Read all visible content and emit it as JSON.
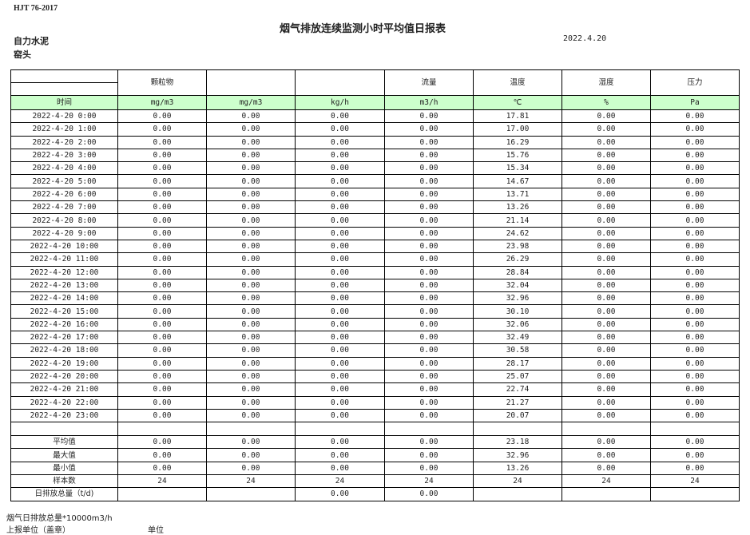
{
  "header": {
    "standard": "HJT  76-2017",
    "title": "烟气排放连续监测小时平均值日报表",
    "organization": "自力水泥",
    "location": "窑头",
    "date": "2022.4.20"
  },
  "columns": [
    "",
    "颗粒物",
    "",
    "",
    "流量",
    "温度",
    "湿度",
    "压力"
  ],
  "units": [
    "时间",
    "mg/m3",
    "mg/m3",
    "kg/h",
    "m3/h",
    "℃",
    "%",
    "Pa"
  ],
  "rows": [
    [
      "2022-4-20 0:00",
      "0.00",
      "0.00",
      "0.00",
      "0.00",
      "17.81",
      "0.00",
      "0.00"
    ],
    [
      "2022-4-20 1:00",
      "0.00",
      "0.00",
      "0.00",
      "0.00",
      "17.00",
      "0.00",
      "0.00"
    ],
    [
      "2022-4-20 2:00",
      "0.00",
      "0.00",
      "0.00",
      "0.00",
      "16.29",
      "0.00",
      "0.00"
    ],
    [
      "2022-4-20 3:00",
      "0.00",
      "0.00",
      "0.00",
      "0.00",
      "15.76",
      "0.00",
      "0.00"
    ],
    [
      "2022-4-20 4:00",
      "0.00",
      "0.00",
      "0.00",
      "0.00",
      "15.34",
      "0.00",
      "0.00"
    ],
    [
      "2022-4-20 5:00",
      "0.00",
      "0.00",
      "0.00",
      "0.00",
      "14.67",
      "0.00",
      "0.00"
    ],
    [
      "2022-4-20 6:00",
      "0.00",
      "0.00",
      "0.00",
      "0.00",
      "13.71",
      "0.00",
      "0.00"
    ],
    [
      "2022-4-20 7:00",
      "0.00",
      "0.00",
      "0.00",
      "0.00",
      "13.26",
      "0.00",
      "0.00"
    ],
    [
      "2022-4-20 8:00",
      "0.00",
      "0.00",
      "0.00",
      "0.00",
      "21.14",
      "0.00",
      "0.00"
    ],
    [
      "2022-4-20 9:00",
      "0.00",
      "0.00",
      "0.00",
      "0.00",
      "24.62",
      "0.00",
      "0.00"
    ],
    [
      "2022-4-20 10:00",
      "0.00",
      "0.00",
      "0.00",
      "0.00",
      "23.98",
      "0.00",
      "0.00"
    ],
    [
      "2022-4-20 11:00",
      "0.00",
      "0.00",
      "0.00",
      "0.00",
      "26.29",
      "0.00",
      "0.00"
    ],
    [
      "2022-4-20 12:00",
      "0.00",
      "0.00",
      "0.00",
      "0.00",
      "28.84",
      "0.00",
      "0.00"
    ],
    [
      "2022-4-20 13:00",
      "0.00",
      "0.00",
      "0.00",
      "0.00",
      "32.04",
      "0.00",
      "0.00"
    ],
    [
      "2022-4-20 14:00",
      "0.00",
      "0.00",
      "0.00",
      "0.00",
      "32.96",
      "0.00",
      "0.00"
    ],
    [
      "2022-4-20 15:00",
      "0.00",
      "0.00",
      "0.00",
      "0.00",
      "30.10",
      "0.00",
      "0.00"
    ],
    [
      "2022-4-20 16:00",
      "0.00",
      "0.00",
      "0.00",
      "0.00",
      "32.06",
      "0.00",
      "0.00"
    ],
    [
      "2022-4-20 17:00",
      "0.00",
      "0.00",
      "0.00",
      "0.00",
      "32.49",
      "0.00",
      "0.00"
    ],
    [
      "2022-4-20 18:00",
      "0.00",
      "0.00",
      "0.00",
      "0.00",
      "30.58",
      "0.00",
      "0.00"
    ],
    [
      "2022-4-20 19:00",
      "0.00",
      "0.00",
      "0.00",
      "0.00",
      "28.17",
      "0.00",
      "0.00"
    ],
    [
      "2022-4-20 20:00",
      "0.00",
      "0.00",
      "0.00",
      "0.00",
      "25.07",
      "0.00",
      "0.00"
    ],
    [
      "2022-4-20 21:00",
      "0.00",
      "0.00",
      "0.00",
      "0.00",
      "22.74",
      "0.00",
      "0.00"
    ],
    [
      "2022-4-20 22:00",
      "0.00",
      "0.00",
      "0.00",
      "0.00",
      "21.27",
      "0.00",
      "0.00"
    ],
    [
      "2022-4-20 23:00",
      "0.00",
      "0.00",
      "0.00",
      "0.00",
      "20.07",
      "0.00",
      "0.00"
    ]
  ],
  "stats": [
    [
      "平均值",
      "0.00",
      "0.00",
      "0.00",
      "0.00",
      "23.18",
      "0.00",
      "0.00"
    ],
    [
      "最大值",
      "0.00",
      "0.00",
      "0.00",
      "0.00",
      "32.96",
      "0.00",
      "0.00"
    ],
    [
      "最小值",
      "0.00",
      "0.00",
      "0.00",
      "0.00",
      "13.26",
      "0.00",
      "0.00"
    ],
    [
      "样本数",
      "24",
      "24",
      "24",
      "24",
      "24",
      "24",
      "24"
    ],
    [
      "日排放总量（t/d)",
      "",
      "",
      "0.00",
      "0.00",
      "",
      "",
      ""
    ]
  ],
  "footer": {
    "flue_total": "烟气日排放总量*10000m3/h",
    "reporter": "上报单位（盖章）",
    "unit": "单位"
  }
}
